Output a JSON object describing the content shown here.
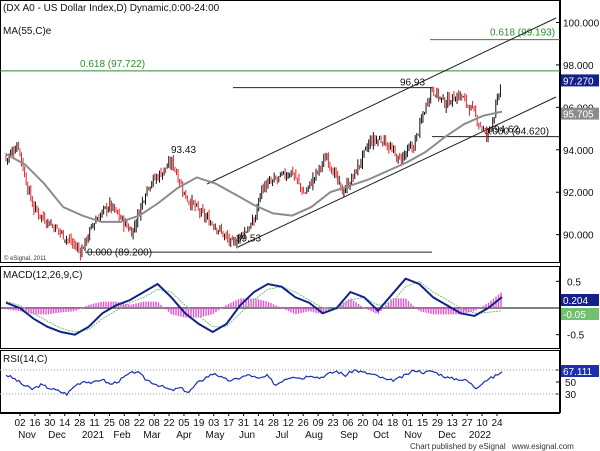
{
  "header": {
    "title": "(DX A0 - US Dollar Index,D) Dynamic,0:00-24:00",
    "ma_label": "MA(55,C)e"
  },
  "colors": {
    "up": "#111111",
    "down": "#e0262a",
    "ma": "#8c8c8c",
    "fib": "#2e8b2e",
    "macd": "#14218a",
    "signal": "#6fc06f",
    "histogram": "#e64fd6",
    "rsi": "#1c2fb0",
    "channel": "#222222",
    "price_badge": "#14218a",
    "ma_badge": "#8c8c8c"
  },
  "chart_data": [
    {
      "type": "candlestick",
      "title": "(DX A0 - US Dollar Index,D) Dynamic,0:00-24:00",
      "ylim": [
        88.9,
        100.4
      ],
      "y_ticks": [
        "90.000",
        "92.000",
        "94.000",
        "96.000",
        "98.000",
        "100.000"
      ],
      "last_price": "97.270",
      "ma_value": "95.705",
      "ma_series": {
        "name": "MA(55,C)e",
        "values": [
          93.8,
          93.3,
          92.4,
          91.3,
          90.9,
          90.6,
          90.6,
          90.9,
          91.5,
          92.2,
          92.7,
          92.4,
          91.9,
          91.4,
          91.0,
          90.9,
          91.3,
          92.0,
          92.3,
          92.6,
          93.0,
          93.4,
          93.9,
          94.6,
          95.2,
          95.6,
          95.8
        ]
      },
      "price_path": [
        {
          "x": "02 Nov 2020",
          "y": 93.8
        },
        {
          "x": "09 Nov 2020",
          "y": 94.3
        },
        {
          "x": "16 Nov 2020",
          "y": 92.6
        },
        {
          "x": "23 Nov 2020",
          "y": 91.3
        },
        {
          "x": "30 Nov 2020",
          "y": 90.9
        },
        {
          "x": "14 Dec 2020",
          "y": 90.3
        },
        {
          "x": "06 Jan 2021",
          "y": 89.2
        },
        {
          "x": "18 Jan 2021",
          "y": 90.6
        },
        {
          "x": "01 Feb 2021",
          "y": 91.4
        },
        {
          "x": "22 Feb 2021",
          "y": 90.1
        },
        {
          "x": "08 Mar 2021",
          "y": 92.3
        },
        {
          "x": "31 Mar 2021",
          "y": 93.43
        },
        {
          "x": "12 Apr 2021",
          "y": 91.8
        },
        {
          "x": "26 Apr 2021",
          "y": 91.0
        },
        {
          "x": "10 May 2021",
          "y": 90.4
        },
        {
          "x": "25 May 2021",
          "y": 89.53
        },
        {
          "x": "14 Jun 2021",
          "y": 90.6
        },
        {
          "x": "21 Jun 2021",
          "y": 92.2
        },
        {
          "x": "05 Jul 2021",
          "y": 92.6
        },
        {
          "x": "19 Jul 2021",
          "y": 93.0
        },
        {
          "x": "30 Jul 2021",
          "y": 91.9
        },
        {
          "x": "20 Aug 2021",
          "y": 93.7
        },
        {
          "x": "03 Sep 2021",
          "y": 92.0
        },
        {
          "x": "13 Sep 2021",
          "y": 92.7
        },
        {
          "x": "29 Sep 2021",
          "y": 94.4
        },
        {
          "x": "11 Oct 2021",
          "y": 94.5
        },
        {
          "x": "25 Oct 2021",
          "y": 93.5
        },
        {
          "x": "08 Nov 2021",
          "y": 94.2
        },
        {
          "x": "24 Nov 2021",
          "y": 96.93
        },
        {
          "x": "06 Dec 2021",
          "y": 96.2
        },
        {
          "x": "20 Dec 2021",
          "y": 96.6
        },
        {
          "x": "31 Dec 2021",
          "y": 95.9
        },
        {
          "x": "14 Jan 2022",
          "y": 94.62
        },
        {
          "x": "21 Jan 2022",
          "y": 95.7
        },
        {
          "x": "28 Jan 2022",
          "y": 97.27
        }
      ],
      "annotations": [
        {
          "text": "93.43",
          "x": "31 Mar 2021",
          "y": 93.43
        },
        {
          "text": "96.93",
          "x": "24 Nov 2021",
          "y": 96.93
        },
        {
          "text": "89.53",
          "x": "25 May 2021",
          "y": 89.53
        },
        {
          "text": "94.62",
          "x": "14 Jan 2022",
          "y": 94.62
        },
        {
          "text": "0.000 (89.200)",
          "y": 89.2
        },
        {
          "text": "0.000 (94.620)",
          "y": 94.62
        },
        {
          "text": "0.618 (97.722)",
          "y": 97.722
        },
        {
          "text": "0.618 (99.193)",
          "y": 99.193
        }
      ]
    },
    {
      "type": "line",
      "title": "MACD(12,26,9,C)",
      "ylim": [
        -0.75,
        0.75
      ],
      "y_ticks": [
        "0.5",
        "-0.5"
      ],
      "macd_value": "0.204",
      "signal_value": "-0.05",
      "series": [
        {
          "name": "MACD",
          "values": [
            0.1,
            0.0,
            -0.2,
            -0.35,
            -0.45,
            -0.5,
            -0.35,
            -0.1,
            0.05,
            0.15,
            0.3,
            0.45,
            0.2,
            -0.1,
            -0.3,
            -0.45,
            -0.3,
            0.05,
            0.3,
            0.45,
            0.4,
            0.2,
            0.1,
            -0.1,
            0.0,
            0.3,
            0.2,
            -0.05,
            0.25,
            0.55,
            0.45,
            0.2,
            0.05,
            -0.1,
            -0.15,
            0.0,
            0.204
          ]
        },
        {
          "name": "Signal",
          "values": [
            0.12,
            0.05,
            -0.1,
            -0.25,
            -0.38,
            -0.45,
            -0.4,
            -0.2,
            -0.05,
            0.1,
            0.2,
            0.35,
            0.3,
            0.05,
            -0.15,
            -0.35,
            -0.35,
            -0.1,
            0.15,
            0.35,
            0.4,
            0.3,
            0.15,
            0.0,
            -0.02,
            0.15,
            0.2,
            0.05,
            0.1,
            0.4,
            0.5,
            0.3,
            0.15,
            0.0,
            -0.1,
            -0.08,
            -0.05
          ]
        }
      ]
    },
    {
      "type": "line",
      "title": "RSI(14,C)",
      "ylim": [
        0,
        100
      ],
      "y_ticks": [
        "70",
        "50",
        "30"
      ],
      "rsi_value": "67.111",
      "series": [
        {
          "name": "RSI",
          "values": [
            62,
            55,
            45,
            38,
            45,
            40,
            35,
            30,
            45,
            52,
            48,
            55,
            46,
            52,
            62,
            68,
            55,
            48,
            42,
            36,
            40,
            33,
            48,
            58,
            65,
            55,
            52,
            58,
            62,
            55,
            60,
            45,
            55,
            60,
            56,
            62,
            57,
            63,
            68,
            61,
            70,
            66,
            63,
            58,
            52,
            55,
            62,
            70,
            66,
            68,
            62,
            56,
            55,
            52,
            40,
            52,
            58,
            67
          ]
        }
      ]
    }
  ],
  "x_axis": {
    "date_labels": [
      "02",
      "16",
      "30",
      "14",
      "28",
      "11",
      "25",
      "08",
      "22",
      "08",
      "22",
      "05",
      "19",
      "03",
      "17",
      "31",
      "14",
      "28",
      "12",
      "26",
      "09",
      "23",
      "06",
      "20",
      "04",
      "18",
      "01",
      "15",
      "29",
      "13",
      "27",
      "10",
      "24"
    ],
    "month_labels": [
      "Nov",
      "Dec",
      "2021",
      "Feb",
      "Mar",
      "Apr",
      "May",
      "Jun",
      "Jul",
      "Aug",
      "Sep",
      "Oct",
      "Nov",
      "Dec",
      "2022"
    ]
  },
  "footer": {
    "copyright": "© eSignal, 2011",
    "published": "Chart published by eSignal",
    "site": "www.esignal.com"
  }
}
